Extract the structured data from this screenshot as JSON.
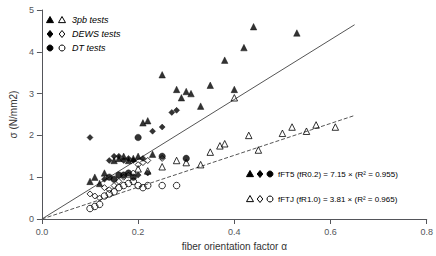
{
  "chart_data": {
    "type": "scatter",
    "xlabel": "fiber orientation factor α",
    "ylabel": "σ (N/mm2)",
    "xlim": [
      0,
      0.8
    ],
    "ylim": [
      0,
      5
    ],
    "xticks": [
      {
        "value": 0,
        "label": "0.0"
      },
      0.2,
      0.4,
      0.6,
      0.8
    ],
    "yticks": [
      0,
      1,
      2,
      3,
      4,
      5
    ],
    "grid": false,
    "legend": "upper left",
    "series": [
      {
        "name": "3pb tests",
        "type": "scatter",
        "marker": "triangle",
        "color": "#000000",
        "x": [
          0.1,
          0.11,
          0.12,
          0.13,
          0.15,
          0.16,
          0.17,
          0.18,
          0.19,
          0.2,
          0.21,
          0.22,
          0.23,
          0.25,
          0.28,
          0.29,
          0.3,
          0.31,
          0.33,
          0.35,
          0.38,
          0.4,
          0.42,
          0.44,
          0.53
        ],
        "values": [
          0.9,
          1.0,
          0.85,
          1.1,
          1.4,
          1.45,
          1.5,
          1.4,
          1.45,
          1.5,
          2.3,
          2.35,
          1.55,
          3.45,
          3.1,
          2.9,
          3.05,
          3.0,
          2.7,
          3.2,
          3.8,
          3.1,
          4.1,
          4.6,
          4.45
        ]
      },
      {
        "name": "3pb tests",
        "type": "scatter",
        "marker": "open_triangle",
        "color": "#000000",
        "x": [
          0.2,
          0.22,
          0.25,
          0.28,
          0.3,
          0.33,
          0.35,
          0.37,
          0.38,
          0.4,
          0.43,
          0.45,
          0.5,
          0.52,
          0.55,
          0.57,
          0.61
        ],
        "values": [
          1.2,
          1.15,
          1.25,
          1.4,
          1.35,
          1.3,
          1.6,
          1.75,
          1.8,
          2.9,
          2.0,
          1.65,
          2.05,
          2.2,
          2.1,
          2.25,
          2.2
        ]
      },
      {
        "name": "DEWS tests",
        "type": "scatter",
        "marker": "diamond",
        "color": "#000000",
        "x": [
          0.1,
          0.13,
          0.14,
          0.15,
          0.16,
          0.17,
          0.18,
          0.19,
          0.2,
          0.21,
          0.22,
          0.23,
          0.25,
          0.27,
          0.28
        ],
        "values": [
          1.95,
          0.95,
          1.4,
          1.5,
          1.5,
          1.4,
          1.45,
          1.4,
          1.05,
          1.45,
          1.1,
          2.1,
          2.2,
          2.55,
          2.6
        ]
      },
      {
        "name": "DEWS tests",
        "type": "scatter",
        "marker": "open_diamond",
        "color": "#000000",
        "x": [
          0.1,
          0.11,
          0.12,
          0.13,
          0.14,
          0.15,
          0.16,
          0.17,
          0.18,
          0.19,
          0.2,
          0.21,
          0.22,
          0.25
        ],
        "values": [
          0.6,
          0.55,
          0.5,
          0.75,
          0.7,
          0.8,
          0.9,
          1.0,
          1.05,
          1.1,
          1.3,
          1.35,
          1.4,
          1.45
        ]
      },
      {
        "name": "DT tests",
        "type": "scatter",
        "marker": "circle",
        "color": "#000000",
        "x": [
          0.14,
          0.15,
          0.16,
          0.17,
          0.18,
          0.19,
          0.2,
          0.25,
          0.3
        ],
        "values": [
          1.0,
          0.95,
          1.05,
          1.05,
          1.1,
          1.0,
          1.95,
          1.5,
          1.45
        ]
      },
      {
        "name": "DT tests",
        "type": "scatter",
        "marker": "open_circle",
        "color": "#000000",
        "x": [
          0.1,
          0.11,
          0.12,
          0.13,
          0.14,
          0.15,
          0.16,
          0.17,
          0.18,
          0.19,
          0.2,
          0.21,
          0.22,
          0.25,
          0.28
        ],
        "values": [
          0.25,
          0.3,
          0.35,
          0.55,
          0.6,
          0.65,
          0.75,
          0.8,
          0.85,
          0.9,
          0.8,
          0.75,
          0.8,
          0.8,
          0.8
        ]
      },
      {
        "type": "line",
        "line_style": "solid",
        "color": "#555555",
        "x": [
          0,
          0.65
        ],
        "values": [
          0,
          4.6475
        ]
      },
      {
        "type": "line",
        "line_style": "dashed",
        "color": "#555555",
        "x": [
          0,
          0.65
        ],
        "values": [
          0,
          2.4765
        ]
      }
    ],
    "annotations": [
      {
        "text": "fFT5 (fR0.2) = 7.15 × (R² = 0.955)",
        "marker": "filled"
      },
      {
        "text": "fFTJ (fR1.0) = 3.81 × (R² = 0.965)",
        "marker": "open"
      }
    ]
  }
}
